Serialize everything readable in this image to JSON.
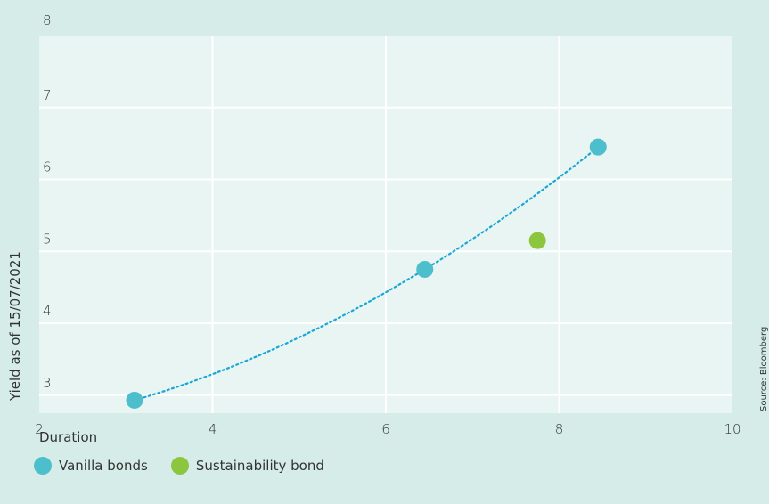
{
  "chart_data": {
    "type": "scatter",
    "title": "",
    "xlabel": "Duration",
    "ylabel": "Yield as of 15/07/2021",
    "xlim": [
      2,
      10
    ],
    "ylim": [
      2.75,
      8
    ],
    "x_ticks": [
      2,
      4,
      6,
      8,
      10
    ],
    "y_ticks": [
      3,
      4,
      5,
      6,
      7,
      8
    ],
    "grid": true,
    "legend_position": "bottom-left",
    "series": [
      {
        "name": "Vanilla bonds",
        "color": "#4dbfcc",
        "points": [
          {
            "x": 3.1,
            "y": 2.93
          },
          {
            "x": 6.45,
            "y": 4.75
          },
          {
            "x": 8.45,
            "y": 6.45
          }
        ],
        "trendline": {
          "style": "dotted",
          "color": "#1aa7d6"
        }
      },
      {
        "name": "Sustainability bond",
        "color": "#8cc63f",
        "points": [
          {
            "x": 7.75,
            "y": 5.15
          }
        ]
      }
    ],
    "source": "Source: Bloomberg"
  }
}
